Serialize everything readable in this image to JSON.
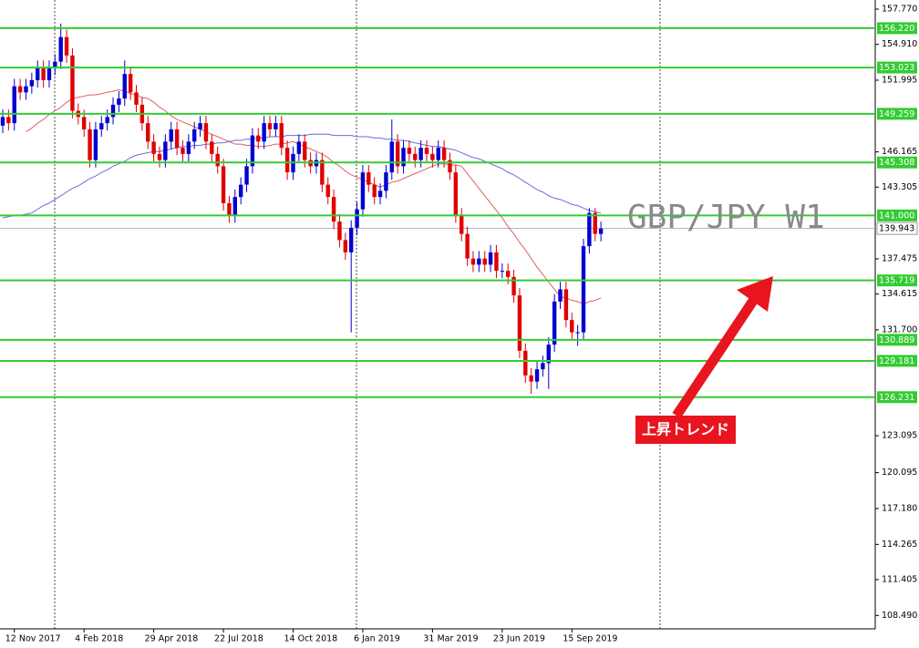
{
  "chart_data": {
    "type": "candlestick",
    "annotations": [
      "GBP/JPY W1",
      "上昇トレンド"
    ],
    "categories": [
      null,
      null,
      "12 Nov 2017",
      null,
      null,
      null,
      null,
      null,
      null,
      null,
      null,
      null,
      null,
      null,
      "4 Feb 2018",
      null,
      null,
      null,
      null,
      null,
      null,
      null,
      null,
      null,
      null,
      null,
      "29 Apr 2018",
      null,
      null,
      null,
      null,
      null,
      null,
      null,
      null,
      null,
      null,
      null,
      "22 Jul 2018",
      null,
      null,
      null,
      null,
      null,
      null,
      null,
      null,
      null,
      null,
      null,
      "14 Oct 2018",
      null,
      null,
      null,
      null,
      null,
      null,
      null,
      null,
      null,
      null,
      null,
      "6 Jan 2019",
      null,
      null,
      null,
      null,
      null,
      null,
      null,
      null,
      null,
      null,
      null,
      "31 Mar 2019",
      null,
      null,
      null,
      null,
      null,
      null,
      null,
      null,
      null,
      null,
      null,
      "23 Jun 2019",
      null,
      null,
      null,
      null,
      null,
      null,
      null,
      null,
      null,
      null,
      null,
      "15 Sep 2019",
      null,
      null,
      null,
      null,
      null
    ],
    "open": [
      148.3,
      149,
      148.5,
      151.5,
      151,
      151.5,
      152,
      153,
      152,
      153,
      153.5,
      155.5,
      154,
      149.5,
      149,
      148,
      145.5,
      148,
      148.5,
      149,
      150,
      150.5,
      152.5,
      151,
      150,
      148.5,
      147,
      146,
      145.5,
      147,
      148,
      146.5,
      146,
      147,
      148,
      148.5,
      147,
      146,
      145,
      142,
      141,
      142.5,
      143.5,
      145,
      147.5,
      147,
      148.5,
      148,
      148.5,
      146.5,
      144.5,
      146,
      147,
      145.5,
      145,
      145.5,
      143.5,
      142.5,
      140.5,
      139,
      138,
      140,
      141.5,
      144.5,
      143.5,
      142.5,
      143,
      144.5,
      147,
      145,
      146.5,
      146,
      145.5,
      146.5,
      146,
      145.5,
      146.5,
      145.5,
      144.5,
      141,
      139.5,
      137.5,
      137,
      137.5,
      137,
      138,
      136.5,
      136.5,
      136,
      134.5,
      130,
      128,
      127.5,
      128.5,
      129,
      130.5,
      134,
      135,
      132.5,
      131.5,
      131.5,
      138.5,
      141.2,
      139.5
    ],
    "high": [
      149.6,
      149.6,
      152.1,
      152.1,
      152.1,
      152.6,
      153.6,
      153.6,
      153.6,
      154.1,
      156.6,
      156.1,
      154.6,
      150.1,
      149.6,
      148.6,
      148.6,
      149.1,
      149.6,
      150.6,
      151.1,
      153.6,
      153.1,
      151.6,
      150.6,
      149.1,
      147.6,
      146.6,
      147.6,
      148.6,
      148.6,
      147.1,
      147.6,
      148.6,
      149.1,
      149.1,
      147.6,
      146.6,
      145.6,
      142.6,
      143.1,
      144.1,
      145.6,
      148.1,
      148.1,
      149.1,
      149.1,
      149.1,
      149.1,
      147.1,
      146.6,
      147.6,
      147.6,
      146.1,
      146.1,
      146.1,
      144.1,
      143.1,
      141.1,
      139.6,
      140.6,
      142.1,
      145.1,
      145.1,
      144.1,
      143.6,
      145.1,
      148.8,
      147.6,
      147.1,
      147.1,
      146.6,
      147.1,
      147.1,
      146.6,
      147.1,
      147.1,
      146.1,
      145.1,
      141.6,
      140.1,
      138.1,
      138.1,
      138.1,
      138.6,
      138.6,
      137.1,
      137.1,
      136.6,
      135.1,
      130.6,
      128.6,
      129.1,
      129.6,
      131.1,
      134.6,
      135.6,
      135.6,
      133.1,
      132.1,
      139.1,
      141.6,
      141.6,
      140.5
    ],
    "low": [
      147.7,
      147.9,
      147.9,
      150.4,
      150.4,
      150.9,
      151.4,
      151.4,
      151.4,
      152.4,
      152.9,
      153.4,
      148.9,
      148.4,
      147.4,
      144.9,
      144.9,
      147.4,
      147.9,
      148.4,
      149.4,
      149.9,
      150.4,
      149.4,
      147.9,
      146.4,
      145.4,
      144.9,
      144.9,
      146.4,
      145.9,
      145.4,
      145.4,
      146.4,
      147.4,
      146.4,
      145.4,
      144.4,
      141.4,
      140.4,
      140.4,
      141.9,
      142.9,
      144.4,
      146.4,
      146.4,
      147.4,
      147.4,
      145.9,
      143.9,
      143.9,
      145.4,
      144.9,
      144.4,
      144.4,
      142.9,
      141.9,
      139.9,
      138.4,
      137.4,
      131.5,
      139.4,
      140.9,
      142.9,
      141.9,
      141.9,
      142.4,
      143.9,
      144.4,
      144.4,
      145.4,
      144.9,
      144.9,
      145.4,
      144.9,
      144.9,
      144.9,
      143.9,
      140.4,
      138.9,
      136.9,
      136.4,
      136.4,
      136.4,
      136.4,
      135.9,
      135.9,
      135.4,
      133.9,
      129.4,
      127.4,
      126.5,
      126.9,
      127.9,
      126.9,
      129.9,
      133.4,
      131.9,
      130.9,
      130.4,
      130.9,
      137.9,
      138.9,
      138.9
    ],
    "close": [
      149,
      148.5,
      151.5,
      151,
      151.5,
      152,
      153,
      152,
      153,
      153.5,
      155.5,
      154,
      149.5,
      149,
      148,
      145.5,
      148,
      148.5,
      149,
      150,
      150.5,
      152.5,
      151,
      150,
      148.5,
      147,
      146,
      145.5,
      147,
      148,
      146.5,
      146,
      147,
      148,
      148.5,
      147,
      146,
      145,
      142,
      141,
      142.5,
      143.5,
      145,
      147.5,
      147,
      148.5,
      148,
      148.5,
      146.5,
      144.5,
      146,
      147,
      145.5,
      145,
      145.5,
      143.5,
      142.5,
      140.5,
      139,
      138,
      140,
      141.5,
      144.5,
      143.5,
      142.5,
      143,
      144.5,
      147,
      145,
      146.5,
      146,
      145.5,
      146.5,
      146,
      145.5,
      146.5,
      145.5,
      144.5,
      141,
      139.5,
      137.5,
      137,
      137.5,
      137,
      138,
      136.5,
      136.5,
      136,
      134.5,
      130,
      128,
      127.5,
      128.5,
      129,
      130.5,
      134,
      135,
      132.5,
      131.5,
      131.5,
      138.5,
      141.2,
      139.5,
      139.94
    ],
    "up_color": "#0000d0",
    "down_color": "#e00000",
    "series": [
      {
        "color": "#e06060",
        "values": [
          null,
          null,
          null,
          null,
          147.8,
          148.1,
          148.5,
          148.8,
          149.2,
          149.5,
          149.8,
          150.2,
          150.5,
          150.6,
          150.7,
          150.8,
          150.8,
          150.9,
          151.0,
          151.1,
          151.2,
          151.1,
          150.9,
          150.8,
          150.6,
          150.5,
          150.2,
          149.8,
          149.5,
          149.1,
          148.8,
          148.6,
          148.4,
          148.2,
          148.0,
          147.8,
          147.6,
          147.4,
          147.2,
          147.0,
          146.8,
          146.8,
          146.7,
          146.7,
          146.6,
          146.6,
          146.7,
          146.8,
          146.8,
          146.9,
          147.0,
          146.8,
          146.6,
          146.4,
          146.2,
          146.0,
          145.7,
          145.3,
          145.0,
          144.6,
          144.3,
          144.1,
          143.9,
          143.7,
          143.5,
          143.3,
          143.5,
          143.7,
          143.8,
          144.0,
          144.2,
          144.4,
          144.6,
          144.8,
          145.0,
          145.2,
          145.2,
          145.1,
          145.1,
          145.0,
          144.4,
          143.8,
          143.2,
          142.6,
          142.0,
          141.4,
          140.8,
          140.1,
          139.5,
          138.8,
          138.2,
          137.5,
          136.8,
          136.2,
          135.6,
          135.0,
          134.4,
          134.3,
          134.1,
          134.0,
          133.8,
          134.0,
          134.1,
          134.3
        ]
      },
      {
        "color": "#6a6ae0",
        "values": [
          140.8,
          140.9,
          141.0,
          141.0,
          141.1,
          141.2,
          141.5,
          141.8,
          142.0,
          142.3,
          142.6,
          142.9,
          143.2,
          143.4,
          143.7,
          144.0,
          144.2,
          144.5,
          144.7,
          145.0,
          145.2,
          145.4,
          145.7,
          145.9,
          146.0,
          146.1,
          146.2,
          146.2,
          146.3,
          146.4,
          146.5,
          146.6,
          146.6,
          146.7,
          146.7,
          146.8,
          146.8,
          146.9,
          146.9,
          147.0,
          147.1,
          147.1,
          147.2,
          147.2,
          147.3,
          147.3,
          147.4,
          147.4,
          147.4,
          147.5,
          147.5,
          147.5,
          147.5,
          147.6,
          147.6,
          147.6,
          147.6,
          147.5,
          147.5,
          147.5,
          147.5,
          147.4,
          147.4,
          147.4,
          147.3,
          147.3,
          147.2,
          147.2,
          147.1,
          147.1,
          147.0,
          146.9,
          146.8,
          146.7,
          146.6,
          146.6,
          146.5,
          146.4,
          146.3,
          146.1,
          145.9,
          145.7,
          145.6,
          145.4,
          145.2,
          145.0,
          144.8,
          144.5,
          144.3,
          144.0,
          143.7,
          143.4,
          143.1,
          142.9,
          142.6,
          142.4,
          142.3,
          142.1,
          141.9,
          141.8,
          141.6,
          141.4,
          141.3,
          141.2
        ]
      }
    ],
    "levels": [
      {
        "value": 156.22,
        "label": "156.220"
      },
      153.023,
      149.259,
      145.308,
      {
        "value": 141,
        "label": "141.000"
      },
      135.719,
      130.889,
      129.181,
      126.231
    ],
    "level_color": "#33cc33",
    "current_price": 139.943,
    "ylim": [
      107.4,
      158.51
    ],
    "yticks": [
      {
        "value": 157.77,
        "label": "157.770"
      },
      {
        "value": 154.91,
        "label": "154.910"
      },
      151.995,
      146.165,
      143.305,
      137.475,
      134.615,
      {
        "value": 131.7,
        "label": "131.700"
      },
      123.095,
      {
        "value": 120.095,
        "label": "120.095"
      },
      {
        "value": 117.18,
        "label": "117.180"
      },
      114.265,
      111.405,
      {
        "value": 108.49,
        "label": "108.490"
      }
    ]
  }
}
